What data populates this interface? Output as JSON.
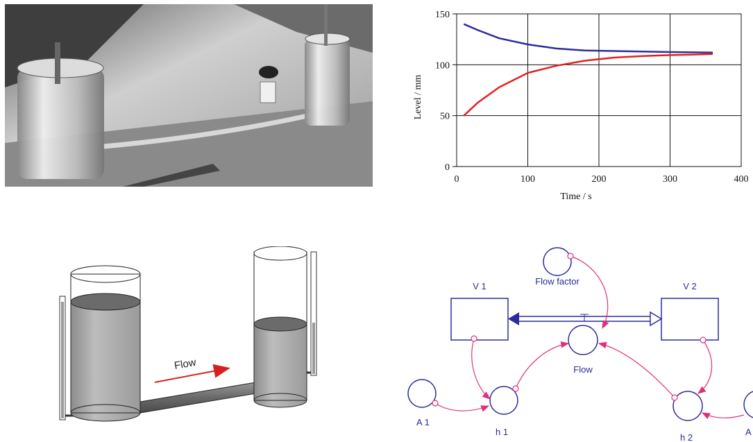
{
  "photo": {
    "alt_description": ""
  },
  "chart_data": {
    "type": "line",
    "xlabel": "Time / s",
    "ylabel": "Level / mm",
    "xlim": [
      0,
      400
    ],
    "ylim": [
      0,
      150
    ],
    "x_ticks": [
      "0",
      "100",
      "200",
      "300",
      "400"
    ],
    "y_ticks": [
      "0",
      "50",
      "100",
      "150"
    ],
    "grid": true,
    "series": [
      {
        "color": "#2b2b9e",
        "x": [
          10,
          30,
          60,
          100,
          140,
          180,
          220,
          260,
          300,
          330,
          360
        ],
        "y": [
          140,
          134,
          126,
          120,
          116,
          114,
          113.5,
          113,
          112.5,
          112.2,
          112
        ]
      },
      {
        "color": "#e32020",
        "x": [
          10,
          30,
          60,
          100,
          140,
          180,
          220,
          260,
          300,
          330,
          360
        ],
        "y": [
          50,
          63,
          78,
          92,
          99,
          104,
          107,
          108.5,
          109.5,
          110,
          110.5
        ]
      }
    ]
  },
  "tank_diagram": {
    "flow_label": "Flow",
    "arrow_color": "#d62020"
  },
  "model": {
    "stock1": "V 1",
    "stock2": "V 2",
    "flow_factor": "Flow factor",
    "flow": "Flow",
    "h1": "h 1",
    "h2": "h 2",
    "a1": "A 1",
    "a2": "A",
    "connector_color": "#e0307a",
    "stock_color": "#2b2b9e"
  }
}
